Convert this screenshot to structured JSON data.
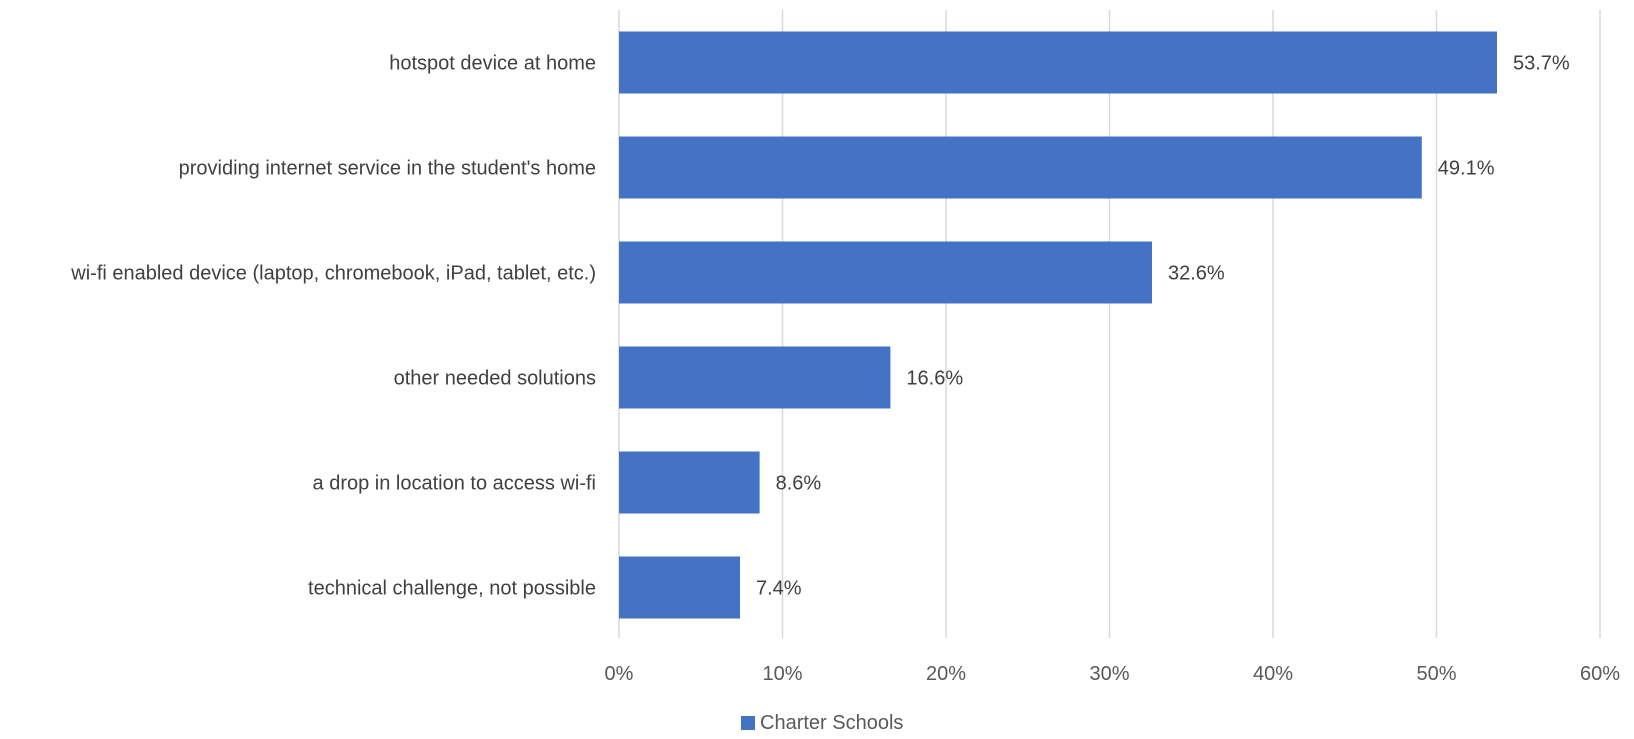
{
  "chart_data": {
    "type": "bar",
    "orientation": "horizontal",
    "categories": [
      "hotspot device at home",
      "providing internet service in the student's home",
      "wi-fi enabled device (laptop, chromebook, iPad, tablet, etc.)",
      "other needed solutions",
      "a drop in location to access wi-fi",
      "technical challenge, not possible"
    ],
    "series": [
      {
        "name": "Charter Schools",
        "values": [
          53.7,
          49.1,
          32.6,
          16.6,
          8.6,
          7.4
        ],
        "labels": [
          "53.7%",
          "49.1%",
          "32.6%",
          "16.6%",
          "8.6%",
          "7.4%"
        ],
        "color": "#4472C4"
      }
    ],
    "xlim": [
      0,
      60
    ],
    "xticks": [
      0,
      10,
      20,
      30,
      40,
      50,
      60
    ],
    "xtick_labels": [
      "0%",
      "10%",
      "20%",
      "30%",
      "40%",
      "50%",
      "60%"
    ],
    "grid": "vertical",
    "legend_position": "bottom",
    "title": "",
    "xlabel": "",
    "ylabel": ""
  }
}
